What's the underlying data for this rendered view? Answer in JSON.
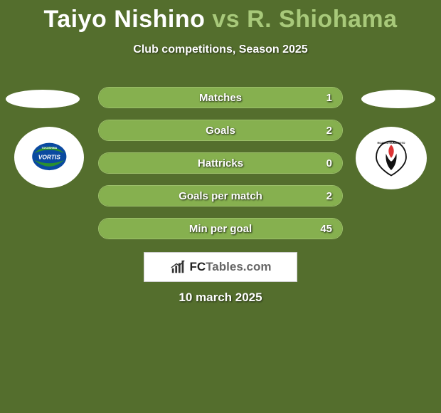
{
  "background_color": "#546e2d",
  "title": {
    "player1": "Taiyo Nishino",
    "vs": "vs",
    "player2": "R. Shiohama",
    "player1_color": "#ffffff",
    "vs_color": "#a8c97a",
    "player2_color": "#a8c97a",
    "fontsize": 34
  },
  "subtitle": "Club competitions, Season 2025",
  "badges": {
    "left": {
      "name": "tokushima-vortis-badge",
      "primary": "#0a4aa0",
      "accent": "#2a9030",
      "text": "VORTIS"
    },
    "right": {
      "name": "roasso-kumamoto-badge",
      "primary": "#111111",
      "accent": "#d33",
      "text": "ROASSO"
    }
  },
  "stats": {
    "bar_border_color": "#9cbf6a",
    "bar_bg_color": "#4f672c",
    "bar_fill_color": "#86b04f",
    "label_fontsize": 15,
    "rows": [
      {
        "label": "Matches",
        "left_val": null,
        "right_val": "1",
        "left_pct": 0,
        "right_pct": 100
      },
      {
        "label": "Goals",
        "left_val": null,
        "right_val": "2",
        "left_pct": 0,
        "right_pct": 100
      },
      {
        "label": "Hattricks",
        "left_val": null,
        "right_val": "0",
        "left_pct": 0,
        "right_pct": 100
      },
      {
        "label": "Goals per match",
        "left_val": null,
        "right_val": "2",
        "left_pct": 0,
        "right_pct": 100
      },
      {
        "label": "Min per goal",
        "left_val": null,
        "right_val": "45",
        "left_pct": 0,
        "right_pct": 100
      }
    ]
  },
  "logo": {
    "fc": "FC",
    "rest": "Tables.com"
  },
  "date": "10 march 2025"
}
